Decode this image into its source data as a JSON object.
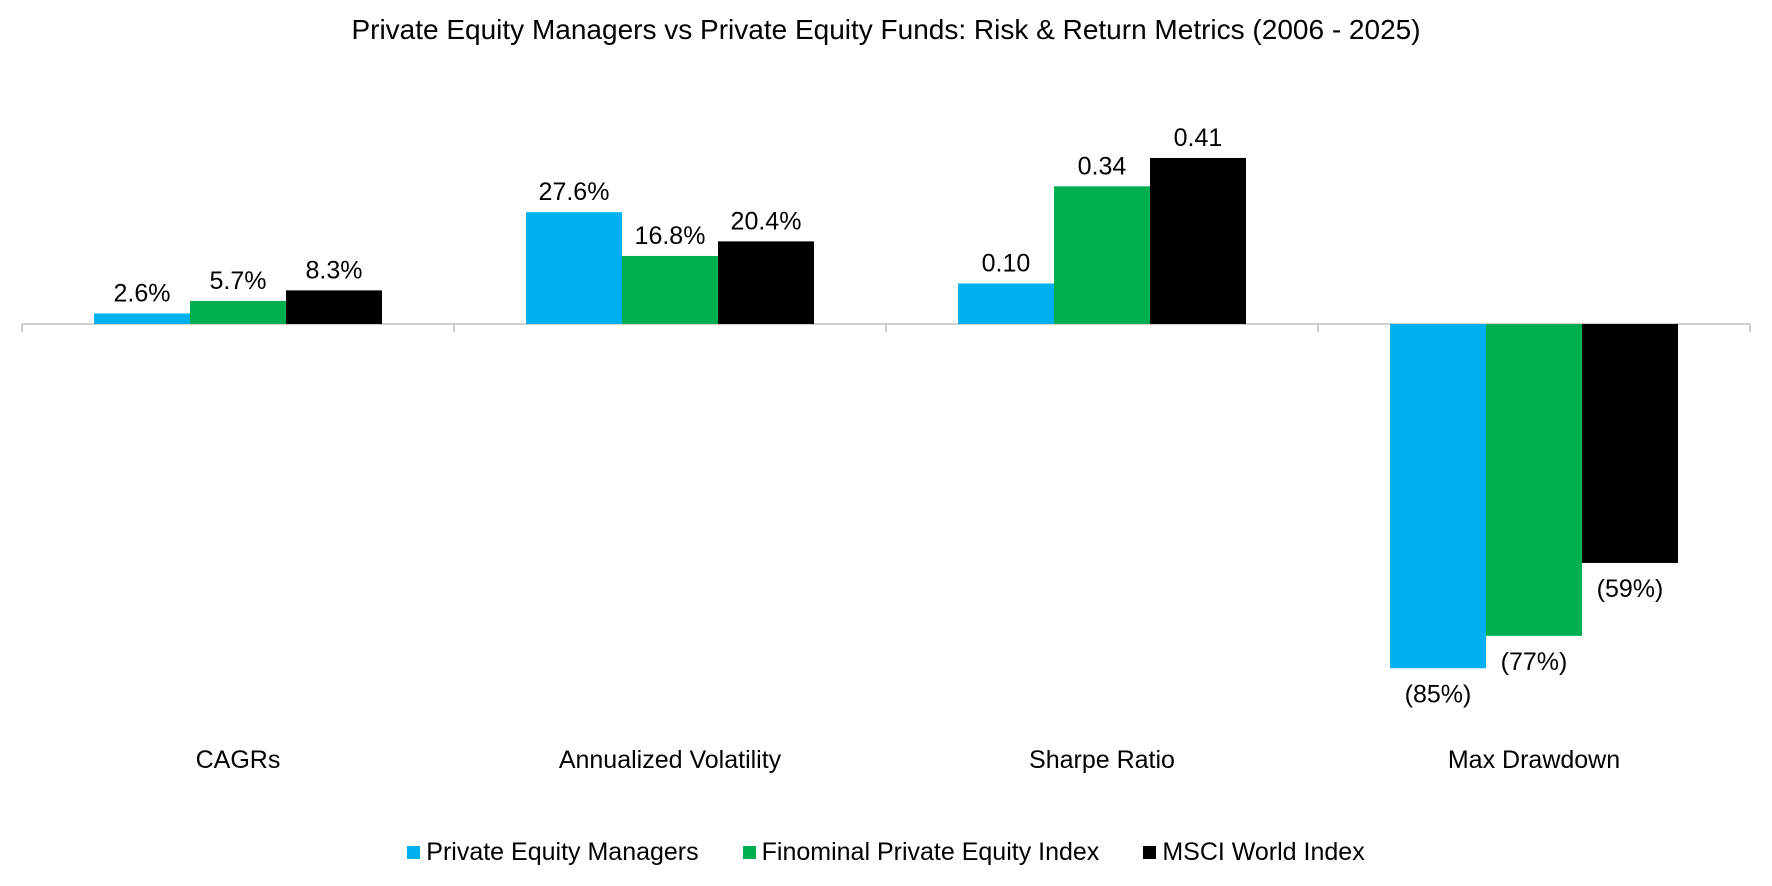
{
  "chart_data": {
    "type": "bar",
    "title": "Private Equity Managers vs Private Equity Funds: Risk & Return Metrics (2006 - 2025)",
    "categories": [
      "CAGRs",
      "Annualized Volatility",
      "Sharpe Ratio",
      "Max Drawdown"
    ],
    "series": [
      {
        "name": "Private Equity Managers",
        "color": "#00B0F0",
        "values": [
          0.026,
          0.276,
          0.1,
          -0.85
        ],
        "labels": [
          "2.6%",
          "27.6%",
          "0.10",
          "(85%)"
        ]
      },
      {
        "name": "Finominal Private Equity Index",
        "color": "#00B050",
        "values": [
          0.057,
          0.168,
          0.34,
          -0.77
        ],
        "labels": [
          "5.7%",
          "16.8%",
          "0.34",
          "(77%)"
        ]
      },
      {
        "name": "MSCI World Index",
        "color": "#000000",
        "values": [
          0.083,
          0.204,
          0.41,
          -0.59
        ],
        "labels": [
          "8.3%",
          "20.4%",
          "0.41",
          "(59%)"
        ]
      }
    ],
    "ylim": [
      -1.0,
      0.5
    ],
    "grid": false,
    "legend_position": "bottom"
  }
}
